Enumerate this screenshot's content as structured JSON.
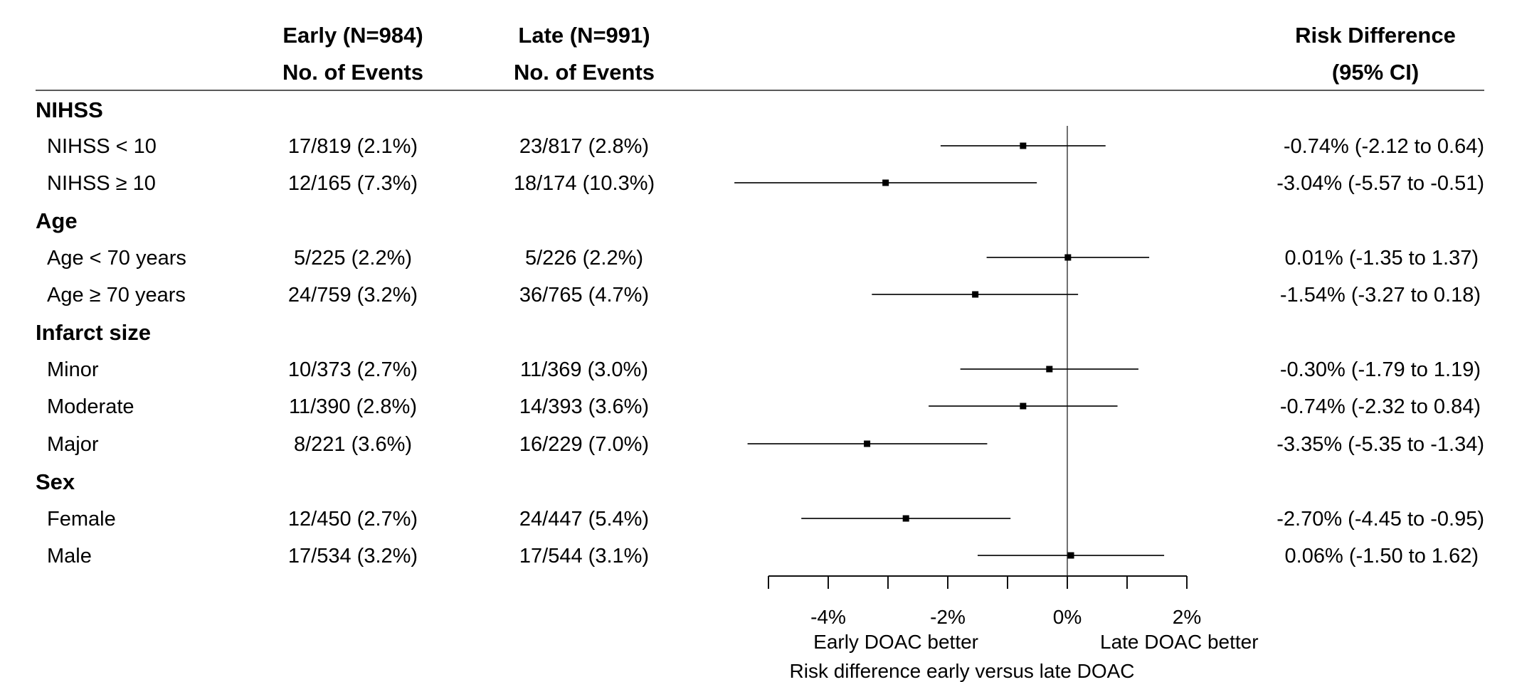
{
  "headers": {
    "early_line1": "Early (N=984)",
    "early_line2": "No. of Events",
    "late_line1": "Late (N=991)",
    "late_line2": "No. of Events",
    "rd_line1": "Risk Difference",
    "rd_line2": "(95% CI)"
  },
  "groups": [
    "NIHSS",
    "Age",
    "Infarct size",
    "Sex"
  ],
  "rows": [
    {
      "label": "NIHSS < 10",
      "early": "17/819 (2.1%)",
      "late": "23/817 (2.8%)",
      "rd_text": "-0.74% (-2.12 to 0.64)"
    },
    {
      "label": "NIHSS ≥ 10",
      "early": "12/165 (7.3%)",
      "late": "18/174 (10.3%)",
      "rd_text": "-3.04% (-5.57 to -0.51)"
    },
    {
      "label": "Age < 70 years",
      "early": "5/225 (2.2%)",
      "late": "5/226 (2.2%)",
      "rd_text": "0.01% (-1.35 to 1.37)"
    },
    {
      "label": "Age ≥ 70 years",
      "early": "24/759 (3.2%)",
      "late": "36/765 (4.7%)",
      "rd_text": "-1.54% (-3.27 to 0.18)"
    },
    {
      "label": "Minor",
      "early": "10/373 (2.7%)",
      "late": "11/369 (3.0%)",
      "rd_text": "-0.30% (-1.79 to 1.19)"
    },
    {
      "label": "Moderate",
      "early": "11/390 (2.8%)",
      "late": "14/393 (3.6%)",
      "rd_text": "-0.74% (-2.32 to 0.84)"
    },
    {
      "label": "Major",
      "early": "8/221 (3.6%)",
      "late": "16/229 (7.0%)",
      "rd_text": "-3.35% (-5.35 to -1.34)"
    },
    {
      "label": "Female",
      "early": "12/450 (2.7%)",
      "late": "24/447 (5.4%)",
      "rd_text": "-2.70% (-4.45 to -0.95)"
    },
    {
      "label": "Male",
      "early": "17/534 (3.2%)",
      "late": "17/544 (3.1%)",
      "rd_text": "0.06% (-1.50 to 1.62)"
    }
  ],
  "chart_data": {
    "type": "forest",
    "xlabel": "Risk difference early versus late DOAC",
    "left_annotation": "Early DOAC better",
    "right_annotation": "Late DOAC better",
    "xlim": [
      -5,
      2
    ],
    "ticks": [
      -5,
      -4,
      -3,
      -2,
      -1,
      0,
      1,
      2
    ],
    "tick_labels": [
      {
        "value": -4,
        "label": "-4%"
      },
      {
        "value": -2,
        "label": "-2%"
      },
      {
        "value": 0,
        "label": "0%"
      },
      {
        "value": 2,
        "label": "2%"
      }
    ],
    "reference_line": 0,
    "points": [
      {
        "label": "NIHSS < 10",
        "estimate": -0.74,
        "lower": -2.12,
        "upper": 0.64
      },
      {
        "label": "NIHSS ≥ 10",
        "estimate": -3.04,
        "lower": -5.57,
        "upper": -0.51
      },
      {
        "label": "Age < 70 years",
        "estimate": 0.01,
        "lower": -1.35,
        "upper": 1.37
      },
      {
        "label": "Age ≥ 70 years",
        "estimate": -1.54,
        "lower": -3.27,
        "upper": 0.18
      },
      {
        "label": "Minor",
        "estimate": -0.3,
        "lower": -1.79,
        "upper": 1.19
      },
      {
        "label": "Moderate",
        "estimate": -0.74,
        "lower": -2.32,
        "upper": 0.84
      },
      {
        "label": "Major",
        "estimate": -3.35,
        "lower": -5.35,
        "upper": -1.34
      },
      {
        "label": "Female",
        "estimate": -2.7,
        "lower": -4.45,
        "upper": -0.95
      },
      {
        "label": "Male",
        "estimate": 0.06,
        "lower": -1.5,
        "upper": 1.62
      }
    ]
  }
}
